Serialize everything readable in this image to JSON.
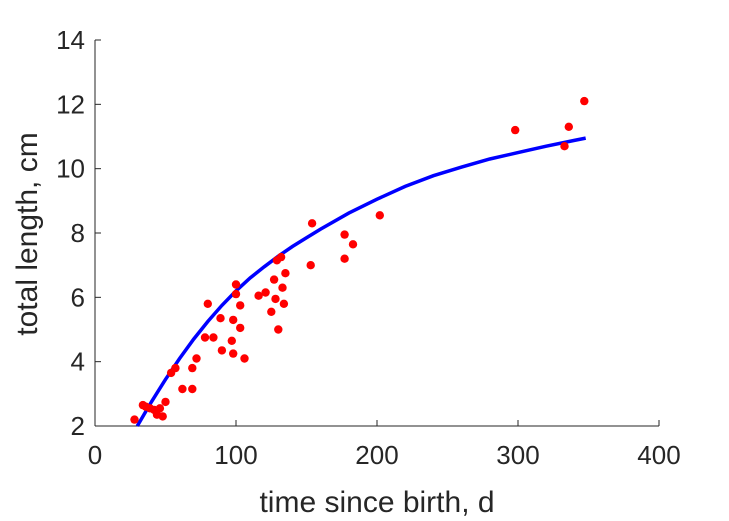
{
  "chart_data": {
    "type": "scatter",
    "title": "",
    "xlabel": "time since birth, d",
    "ylabel": "total length, cm",
    "xlim": [
      0,
      400
    ],
    "ylim": [
      2,
      14
    ],
    "xticks": [
      0,
      100,
      200,
      300,
      400
    ],
    "yticks": [
      2,
      4,
      6,
      8,
      10,
      12,
      14
    ],
    "grid": false,
    "colors": {
      "points": "#ff0000",
      "fit": "#0000ff",
      "axis": "#262626"
    },
    "series": [
      {
        "type": "scatter",
        "points": [
          [
            28,
            2.2
          ],
          [
            34,
            2.65
          ],
          [
            36,
            2.6
          ],
          [
            39,
            2.55
          ],
          [
            42,
            2.5
          ],
          [
            44,
            2.35
          ],
          [
            46,
            2.55
          ],
          [
            48,
            2.3
          ],
          [
            50,
            2.75
          ],
          [
            54,
            3.65
          ],
          [
            57,
            3.8
          ],
          [
            62,
            3.15
          ],
          [
            69,
            3.15
          ],
          [
            69,
            3.8
          ],
          [
            72,
            4.1
          ],
          [
            78,
            4.75
          ],
          [
            80,
            5.8
          ],
          [
            84,
            4.75
          ],
          [
            89,
            5.35
          ],
          [
            90,
            4.35
          ],
          [
            97,
            4.65
          ],
          [
            98,
            4.25
          ],
          [
            98,
            5.3
          ],
          [
            100,
            6.4
          ],
          [
            100,
            6.1
          ],
          [
            103,
            5.05
          ],
          [
            103,
            5.75
          ],
          [
            106,
            4.1
          ],
          [
            116,
            6.05
          ],
          [
            121,
            6.15
          ],
          [
            125,
            5.55
          ],
          [
            127,
            6.55
          ],
          [
            128,
            5.95
          ],
          [
            129,
            7.15
          ],
          [
            130,
            5.0
          ],
          [
            132,
            7.25
          ],
          [
            133,
            6.3
          ],
          [
            134,
            5.8
          ],
          [
            135,
            6.75
          ],
          [
            153,
            7.0
          ],
          [
            154,
            8.3
          ],
          [
            177,
            7.95
          ],
          [
            177,
            7.2
          ],
          [
            183,
            7.65
          ],
          [
            202,
            8.55
          ],
          [
            298,
            11.2
          ],
          [
            333,
            10.7
          ],
          [
            336,
            11.3
          ],
          [
            347,
            12.1
          ]
        ]
      },
      {
        "type": "line",
        "points": [
          [
            30,
            2.0
          ],
          [
            40,
            2.75
          ],
          [
            50,
            3.45
          ],
          [
            60,
            4.1
          ],
          [
            70,
            4.7
          ],
          [
            80,
            5.25
          ],
          [
            90,
            5.75
          ],
          [
            100,
            6.2
          ],
          [
            110,
            6.6
          ],
          [
            120,
            6.95
          ],
          [
            130,
            7.28
          ],
          [
            140,
            7.58
          ],
          [
            150,
            7.85
          ],
          [
            160,
            8.12
          ],
          [
            180,
            8.62
          ],
          [
            200,
            9.05
          ],
          [
            220,
            9.45
          ],
          [
            240,
            9.78
          ],
          [
            260,
            10.05
          ],
          [
            280,
            10.3
          ],
          [
            300,
            10.5
          ],
          [
            320,
            10.7
          ],
          [
            340,
            10.88
          ],
          [
            348,
            10.95
          ]
        ]
      }
    ]
  }
}
